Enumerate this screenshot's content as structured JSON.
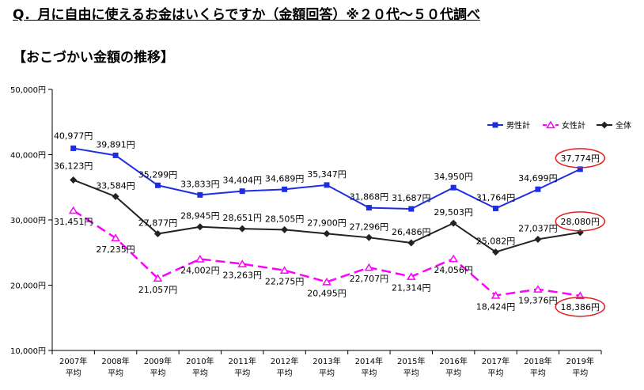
{
  "header": {
    "question": "Q．月に自由に使えるお金はいくらですか（金額回答）※２０代～５０代調べ",
    "chart_title": "【おこづかい金額の推移】"
  },
  "chart_data": {
    "type": "line",
    "categories": [
      [
        "2007年",
        "平均"
      ],
      [
        "2008年",
        "平均"
      ],
      [
        "2009年",
        "平均"
      ],
      [
        "2010年",
        "平均"
      ],
      [
        "2011年",
        "平均"
      ],
      [
        "2012年",
        "平均"
      ],
      [
        "2013年",
        "平均"
      ],
      [
        "2014年",
        "平均"
      ],
      [
        "2015年",
        "平均"
      ],
      [
        "2016年",
        "平均"
      ],
      [
        "2017年",
        "平均"
      ],
      [
        "2018年",
        "平均"
      ],
      [
        "2019年",
        "平均"
      ]
    ],
    "ylim": [
      10000,
      50000
    ],
    "yticks": [
      10000,
      20000,
      30000,
      40000,
      50000
    ],
    "ytick_labels": [
      "10,000円",
      "20,000円",
      "30,000円",
      "40,000円",
      "50,000円"
    ],
    "grid": false,
    "legend_position": "top-right",
    "series": [
      {
        "name": "男性計",
        "color": "#1f2de0",
        "marker": "square",
        "dash": "solid",
        "values": [
          40977,
          39891,
          35299,
          33833,
          34404,
          34689,
          35347,
          31868,
          31687,
          34950,
          31764,
          34699,
          37774
        ],
        "labels": [
          "40,977円",
          "39,891円",
          "35,299円",
          "33,833円",
          "34,404円",
          "34,689円",
          "35,347円",
          "31,868円",
          "31,687円",
          "34,950円",
          "31,764円",
          "34,699円",
          "37,774円"
        ]
      },
      {
        "name": "女性計",
        "color": "#ff00ff",
        "marker": "triangle",
        "dash": "dashed",
        "values": [
          31451,
          27235,
          21057,
          24002,
          23263,
          22275,
          20495,
          22707,
          21314,
          24056,
          18424,
          19376,
          18386
        ],
        "labels": [
          "31,451円",
          "27,235円",
          "21,057円",
          "24,002円",
          "23,263円",
          "22,275円",
          "20,495円",
          "22,707円",
          "21,314円",
          "24,056円",
          "18,424円",
          "19,376円",
          "18,386円"
        ]
      },
      {
        "name": "全体",
        "color": "#222222",
        "marker": "diamond",
        "dash": "solid",
        "values": [
          36123,
          33584,
          27877,
          28945,
          28651,
          28505,
          27900,
          27296,
          26486,
          29503,
          25082,
          27037,
          28080
        ],
        "labels": [
          "36,123円",
          "33,584円",
          "27,877円",
          "28,945円",
          "28,651円",
          "28,505円",
          "27,900円",
          "27,296円",
          "26,486円",
          "29,503円",
          "25,082円",
          "27,037円",
          "28,080円"
        ]
      }
    ],
    "highlighted_labels": [
      {
        "series": 0,
        "index": 12,
        "color": "#e02020"
      },
      {
        "series": 2,
        "index": 12,
        "color": "#e02020"
      },
      {
        "series": 1,
        "index": 12,
        "color": "#e02020"
      }
    ]
  }
}
